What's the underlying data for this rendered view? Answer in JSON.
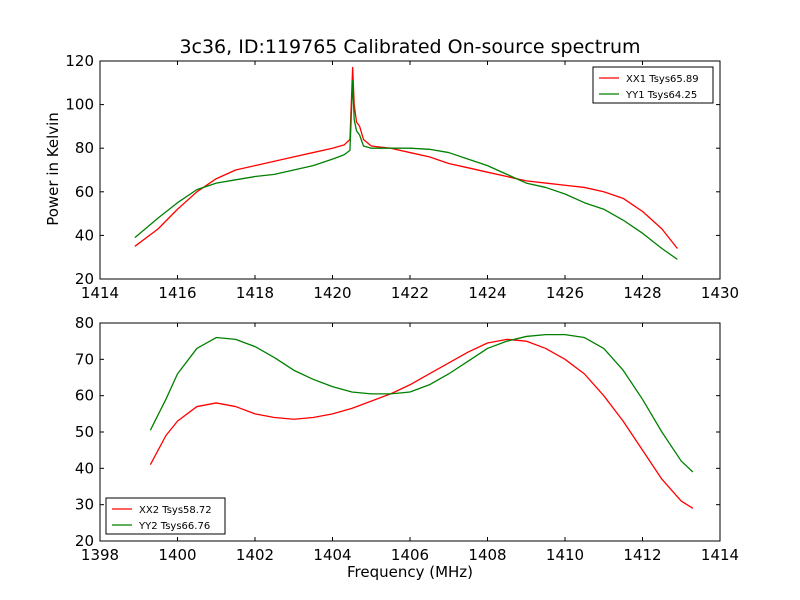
{
  "figure": {
    "title": "3c36, ID:119765 Calibrated On-source spectrum",
    "xlabel": "Frequency (MHz)",
    "ylabel": "Power in Kelvin"
  },
  "chart_data": [
    {
      "type": "line",
      "xlabel": "",
      "ylabel": "Power in Kelvin",
      "xlim": [
        1414,
        1430
      ],
      "ylim": [
        20,
        120
      ],
      "xticks": [
        "1414",
        "1416",
        "1418",
        "1420",
        "1422",
        "1424",
        "1426",
        "1428",
        "1430"
      ],
      "yticks": [
        "20",
        "40",
        "60",
        "80",
        "100",
        "120"
      ],
      "grid": false,
      "legend": "top-right",
      "series": [
        {
          "name": "XX1 Tsys65.89",
          "color": "#ff0000",
          "x": [
            1414.9,
            1415.5,
            1416.0,
            1416.5,
            1417.0,
            1417.5,
            1418.0,
            1418.5,
            1419.0,
            1419.5,
            1420.0,
            1420.3,
            1420.45,
            1420.52,
            1420.56,
            1420.62,
            1420.7,
            1420.8,
            1421.0,
            1421.5,
            1422.0,
            1422.5,
            1423.0,
            1423.5,
            1424.0,
            1424.5,
            1425.0,
            1425.5,
            1426.0,
            1426.5,
            1427.0,
            1427.5,
            1428.0,
            1428.5,
            1428.9
          ],
          "y": [
            35,
            43,
            52,
            60,
            66,
            70,
            72,
            74,
            76,
            78,
            80,
            81.5,
            84,
            117,
            100,
            92,
            90,
            84,
            81,
            80,
            78,
            76,
            73,
            71,
            69,
            67,
            65,
            64,
            63,
            62,
            60,
            57,
            51,
            43,
            34
          ]
        },
        {
          "name": "YY1 Tsys64.25",
          "color": "#008000",
          "x": [
            1414.9,
            1415.5,
            1416.0,
            1416.5,
            1417.0,
            1417.5,
            1418.0,
            1418.5,
            1419.0,
            1419.5,
            1420.0,
            1420.3,
            1420.45,
            1420.52,
            1420.56,
            1420.62,
            1420.7,
            1420.8,
            1421.0,
            1421.5,
            1422.0,
            1422.5,
            1423.0,
            1423.5,
            1424.0,
            1424.5,
            1425.0,
            1425.5,
            1426.0,
            1426.5,
            1427.0,
            1427.5,
            1428.0,
            1428.5,
            1428.9
          ],
          "y": [
            39,
            48,
            55,
            61,
            64,
            65.5,
            67,
            68,
            70,
            72,
            75,
            77,
            79,
            111,
            93,
            88,
            86,
            81,
            80,
            80,
            80,
            79.5,
            78,
            75,
            72,
            68,
            64,
            62,
            59,
            55,
            52,
            47,
            41,
            34,
            29
          ]
        }
      ]
    },
    {
      "type": "line",
      "xlabel": "Frequency (MHz)",
      "ylabel": "",
      "xlim": [
        1398,
        1414
      ],
      "ylim": [
        20,
        80
      ],
      "xticks": [
        "1398",
        "1400",
        "1402",
        "1404",
        "1406",
        "1408",
        "1410",
        "1412",
        "1414"
      ],
      "yticks": [
        "20",
        "30",
        "40",
        "50",
        "60",
        "70",
        "80"
      ],
      "grid": false,
      "legend": "bottom-left",
      "series": [
        {
          "name": "XX2 Tsys58.72",
          "color": "#ff0000",
          "x": [
            1399.3,
            1399.7,
            1400.0,
            1400.5,
            1401.0,
            1401.5,
            1402.0,
            1402.5,
            1403.0,
            1403.5,
            1404.0,
            1404.5,
            1405.0,
            1405.5,
            1406.0,
            1406.5,
            1407.0,
            1407.5,
            1408.0,
            1408.5,
            1409.0,
            1409.5,
            1410.0,
            1410.5,
            1411.0,
            1411.5,
            1412.0,
            1412.5,
            1413.0,
            1413.3
          ],
          "y": [
            41,
            49,
            53,
            57,
            58,
            57,
            55,
            54,
            53.5,
            54,
            55,
            56.5,
            58.5,
            60.5,
            63,
            66,
            69,
            72,
            74.5,
            75.5,
            75,
            73,
            70,
            66,
            60,
            53,
            45,
            37,
            31,
            29
          ]
        },
        {
          "name": "YY2 Tsys66.76",
          "color": "#008000",
          "x": [
            1399.3,
            1399.7,
            1400.0,
            1400.5,
            1401.0,
            1401.5,
            1402.0,
            1402.5,
            1403.0,
            1403.5,
            1404.0,
            1404.5,
            1405.0,
            1405.5,
            1406.0,
            1406.5,
            1407.0,
            1407.5,
            1408.0,
            1408.5,
            1409.0,
            1409.5,
            1410.0,
            1410.5,
            1411.0,
            1411.5,
            1412.0,
            1412.5,
            1413.0,
            1413.3
          ],
          "y": [
            50.5,
            59,
            66,
            73,
            76,
            75.5,
            73.5,
            70.5,
            67,
            64.5,
            62.5,
            61,
            60.5,
            60.5,
            61,
            63,
            66,
            69.5,
            73,
            75,
            76.3,
            76.8,
            76.8,
            76,
            73,
            67,
            59,
            50,
            42,
            39
          ]
        }
      ]
    }
  ]
}
